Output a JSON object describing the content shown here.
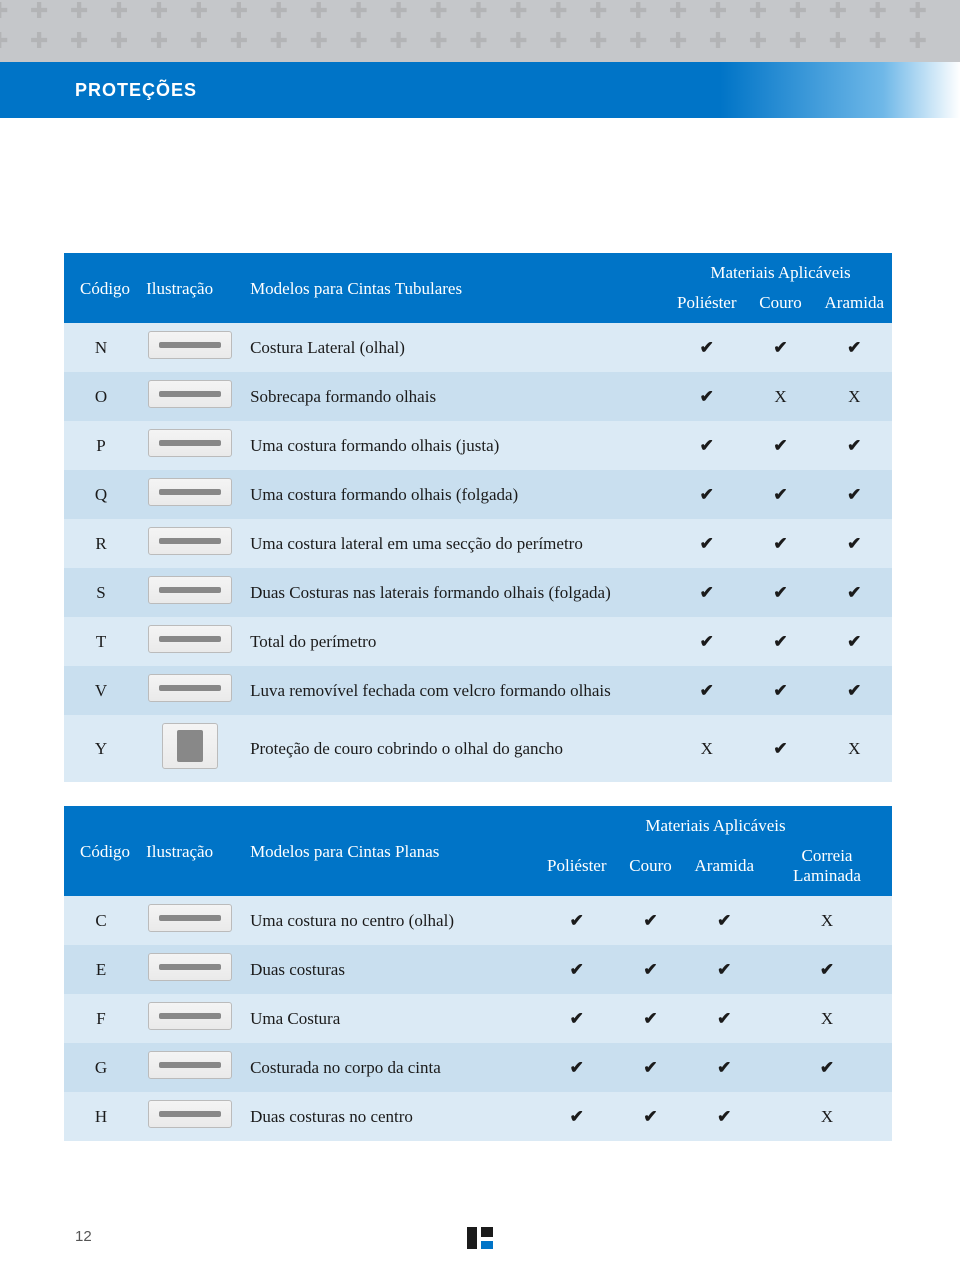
{
  "title": "PROTEÇÕES",
  "page_number": "12",
  "colors": {
    "brand_blue": "#0074c7",
    "row_light": "#dbeaf5",
    "row_dark": "#c9dfef",
    "pattern_bg": "#c5c7ca"
  },
  "check_glyph": "✔",
  "x_glyph": "X",
  "table1": {
    "headers": {
      "codigo": "Código",
      "ilustracao": "Ilustração",
      "modelos": "Modelos para Cintas Tubulares",
      "materiais": "Materiais Aplicáveis"
    },
    "material_cols": [
      "Poliéster",
      "Couro",
      "Aramida"
    ],
    "rows": [
      {
        "code": "N",
        "desc": "Costura Lateral (olhal)",
        "marks": [
          "✔",
          "✔",
          "✔"
        ],
        "tall": false
      },
      {
        "code": "O",
        "desc": "Sobrecapa formando olhais",
        "marks": [
          "✔",
          "X",
          "X"
        ],
        "tall": false
      },
      {
        "code": "P",
        "desc": "Uma costura formando olhais (justa)",
        "marks": [
          "✔",
          "✔",
          "✔"
        ],
        "tall": false
      },
      {
        "code": "Q",
        "desc": "Uma costura formando olhais (folgada)",
        "marks": [
          "✔",
          "✔",
          "✔"
        ],
        "tall": false
      },
      {
        "code": "R",
        "desc": "Uma costura lateral em uma secção do perímetro",
        "marks": [
          "✔",
          "✔",
          "✔"
        ],
        "tall": false
      },
      {
        "code": "S",
        "desc": "Duas Costuras nas laterais formando olhais (folgada)",
        "marks": [
          "✔",
          "✔",
          "✔"
        ],
        "tall": false
      },
      {
        "code": "T",
        "desc": "Total do perímetro",
        "marks": [
          "✔",
          "✔",
          "✔"
        ],
        "tall": false
      },
      {
        "code": "V",
        "desc": "Luva removível fechada com velcro formando olhais",
        "marks": [
          "✔",
          "✔",
          "✔"
        ],
        "tall": false
      },
      {
        "code": "Y",
        "desc": "Proteção de couro cobrindo o olhal do gancho",
        "marks": [
          "X",
          "✔",
          "X"
        ],
        "tall": true
      }
    ]
  },
  "table2": {
    "headers": {
      "codigo": "Código",
      "ilustracao": "Ilustração",
      "modelos": "Modelos para Cintas Planas",
      "materiais": "Materiais Aplicáveis"
    },
    "material_cols": [
      "Poliéster",
      "Couro",
      "Aramida",
      "Correia Laminada"
    ],
    "rows": [
      {
        "code": "C",
        "desc": "Uma costura no centro (olhal)",
        "marks": [
          "✔",
          "✔",
          "✔",
          "X"
        ]
      },
      {
        "code": "E",
        "desc": "Duas costuras",
        "marks": [
          "✔",
          "✔",
          "✔",
          "✔"
        ]
      },
      {
        "code": "F",
        "desc": "Uma Costura",
        "marks": [
          "✔",
          "✔",
          "✔",
          "X"
        ]
      },
      {
        "code": "G",
        "desc": "Costurada no corpo da cinta",
        "marks": [
          "✔",
          "✔",
          "✔",
          "✔"
        ]
      },
      {
        "code": "H",
        "desc": "Duas costuras no centro",
        "marks": [
          "✔",
          "✔",
          "✔",
          "X"
        ]
      }
    ]
  }
}
